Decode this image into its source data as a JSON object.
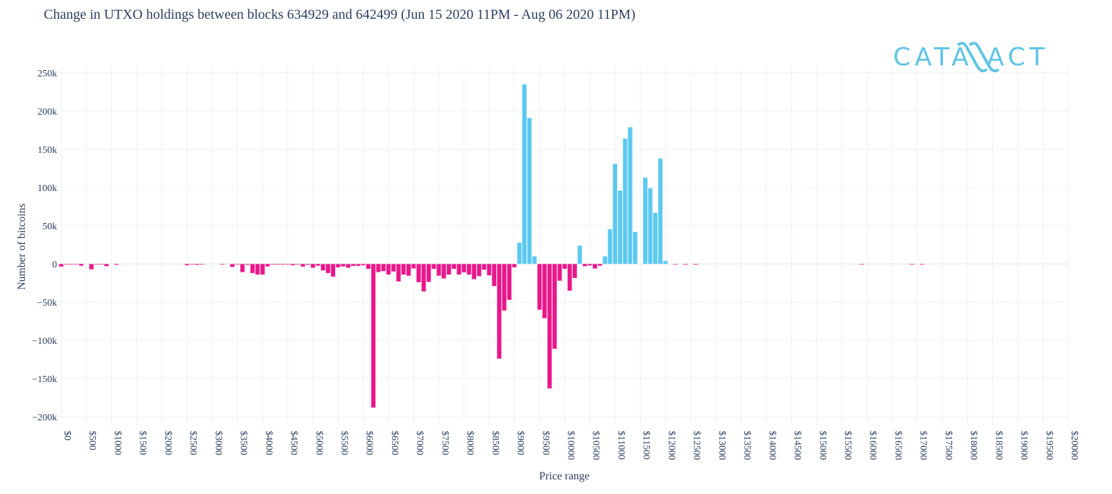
{
  "logo": "CATALLACT",
  "colors": {
    "positive": "#5bc8ef",
    "negative": "#e8168b",
    "grid": "#ebf0f8",
    "text": "#2a3f5f"
  },
  "chart_data": {
    "type": "bar",
    "title": "Change in UTXO holdings between blocks 634929 and 642499 (Jun 15 2020 11PM - Aug 06 2020 11PM)",
    "xlabel": "Price range",
    "ylabel": "Number of bitcoins",
    "xlim": [
      0,
      20000
    ],
    "ylim": [
      -211000,
      259000
    ],
    "grid": true,
    "legend": "none",
    "x_ticks": [
      "$0",
      "$500",
      "$1000",
      "$1500",
      "$2000",
      "$2500",
      "$3000",
      "$3500",
      "$4000",
      "$4500",
      "$5000",
      "$5500",
      "$6000",
      "$6500",
      "$7000",
      "$7500",
      "$8000",
      "$8500",
      "$9000",
      "$9500",
      "$10000",
      "$10500",
      "$11000",
      "$11500",
      "$12000",
      "$12500",
      "$13000",
      "$13500",
      "$14000",
      "$14500",
      "$15000",
      "$15500",
      "$16000",
      "$16500",
      "$17000",
      "$17500",
      "$18000",
      "$18500",
      "$19000",
      "$19500",
      "$20000"
    ],
    "y_ticks": [
      {
        "value": 250000,
        "label": "250k"
      },
      {
        "value": 200000,
        "label": "200k"
      },
      {
        "value": 150000,
        "label": "150k"
      },
      {
        "value": 100000,
        "label": "100k"
      },
      {
        "value": 50000,
        "label": "50k"
      },
      {
        "value": 0,
        "label": "0"
      },
      {
        "value": -50000,
        "label": "−50k"
      },
      {
        "value": -100000,
        "label": "−100k"
      },
      {
        "value": -150000,
        "label": "−150k"
      },
      {
        "value": -200000,
        "label": "−200k"
      }
    ],
    "x": [
      0,
      100,
      200,
      300,
      400,
      600,
      700,
      800,
      900,
      1100,
      2500,
      2600,
      2700,
      2800,
      3200,
      3400,
      3500,
      3600,
      3700,
      3800,
      3900,
      4000,
      4100,
      4200,
      4300,
      4400,
      4500,
      4600,
      4700,
      4800,
      4900,
      5000,
      5100,
      5200,
      5300,
      5400,
      5500,
      5600,
      5700,
      5800,
      5900,
      6000,
      6100,
      6200,
      6300,
      6400,
      6500,
      6600,
      6700,
      6800,
      6900,
      7000,
      7100,
      7200,
      7300,
      7400,
      7500,
      7600,
      7700,
      7800,
      7900,
      8000,
      8100,
      8200,
      8300,
      8400,
      8500,
      8600,
      8700,
      8800,
      8900,
      9000,
      9100,
      9200,
      9300,
      9400,
      9500,
      9600,
      9700,
      9800,
      9900,
      10000,
      10100,
      10200,
      10300,
      10400,
      10500,
      10600,
      10700,
      10800,
      10900,
      11000,
      11100,
      11200,
      11300,
      11400,
      11600,
      11700,
      11800,
      11900,
      12000,
      12200,
      12400,
      12600,
      15900,
      16900,
      17100
    ],
    "y": [
      -3500,
      -500,
      -500,
      -500,
      -2400,
      -7000,
      -500,
      -500,
      -3000,
      -1200,
      -1800,
      -500,
      -1200,
      -500,
      -500,
      -4000,
      -500,
      -10700,
      -1200,
      -12000,
      -14000,
      -14000,
      -3300,
      -1000,
      -1000,
      -1000,
      -500,
      -1800,
      -500,
      -3600,
      -1200,
      -5000,
      -2400,
      -8600,
      -12000,
      -16700,
      -4500,
      -3300,
      -5000,
      -2700,
      -2700,
      -1800,
      -6500,
      -188000,
      -10700,
      -9500,
      -14000,
      -10000,
      -23000,
      -14000,
      -15500,
      -6000,
      -24000,
      -36000,
      -23500,
      -6500,
      -15500,
      -19000,
      -14000,
      -6500,
      -14000,
      -11000,
      -14000,
      -20000,
      -16000,
      -7700,
      -15000,
      -29000,
      -124000,
      -61000,
      -47000,
      -4500,
      28000,
      235000,
      191000,
      10000,
      -60000,
      -71000,
      -163000,
      -111000,
      -22000,
      -6500,
      -35000,
      -18500,
      24000,
      -3000,
      -2000,
      -6000,
      -2400,
      10000,
      45500,
      131000,
      96000,
      164000,
      179000,
      42000,
      113000,
      99000,
      67000,
      138000,
      4000,
      -500,
      -1000,
      -1000,
      -500,
      -500,
      -500
    ]
  }
}
